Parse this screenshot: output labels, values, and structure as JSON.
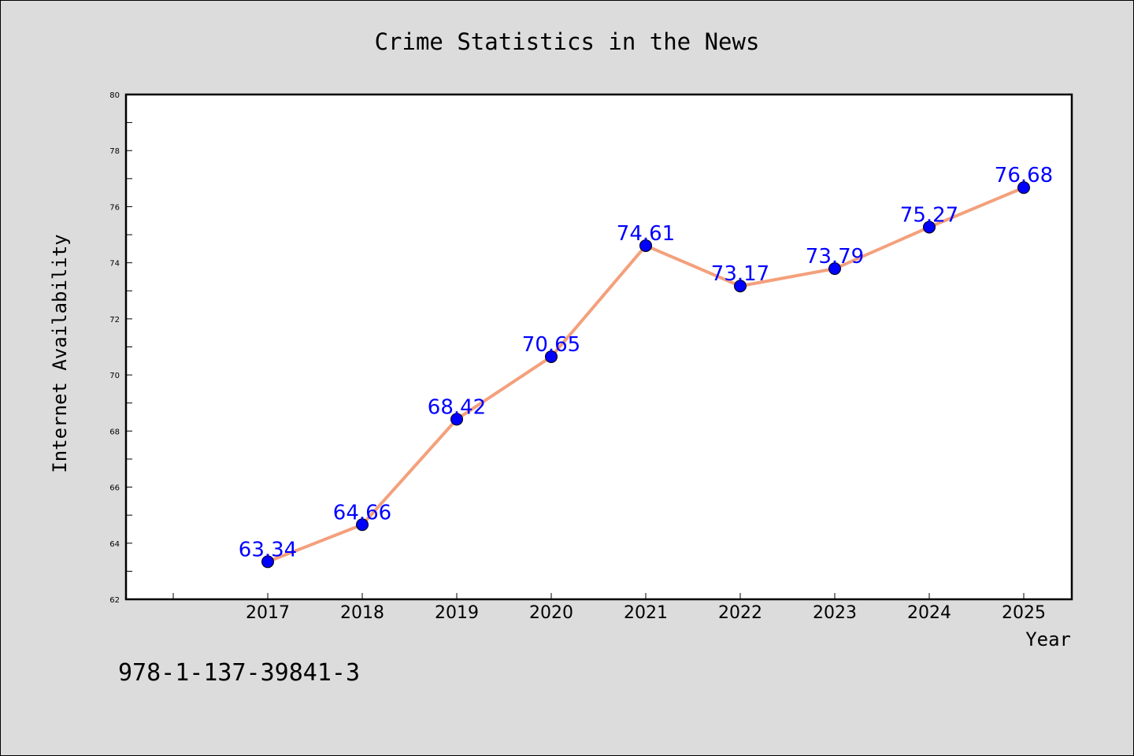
{
  "chart_data": {
    "type": "line",
    "title": "Crime Statistics in the News",
    "xlabel": "Year",
    "ylabel": "Internet Availability",
    "categories": [
      "2017",
      "2018",
      "2019",
      "2020",
      "2021",
      "2022",
      "2023",
      "2024",
      "2025"
    ],
    "series": [
      {
        "values": [
          63.34,
          64.66,
          68.42,
          70.65,
          74.61,
          73.17,
          73.79,
          75.27,
          76.68
        ],
        "labels": [
          "63.34",
          "64.66",
          "68.42",
          "70.65",
          "74.61",
          "73.17",
          "73.79",
          "75.27",
          "76.68"
        ]
      }
    ],
    "ylim": [
      62,
      80
    ],
    "yticks": [
      "62",
      "64",
      "66",
      "68",
      "70",
      "72",
      "74",
      "76",
      "78",
      "80"
    ],
    "grid": false,
    "line_color": "#f4a07c",
    "marker_color": "#0000ff",
    "label_color": "#0000ff",
    "background_color": "#dcdcdc",
    "plot_background_color": "#ffffff"
  },
  "footer": {
    "isbn": "978-1-137-39841-3"
  }
}
